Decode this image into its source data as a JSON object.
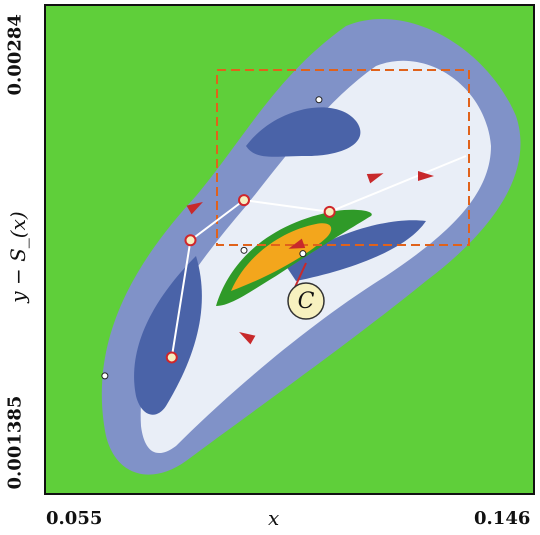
{
  "chart_data": {
    "type": "scatter",
    "title": "",
    "xlabel": "x",
    "ylabel": "y − S_(x)",
    "xlim": [
      0.055,
      0.146
    ],
    "ylim": [
      0.001385,
      0.00284
    ],
    "x_ticks": [
      "0.055",
      "0.146"
    ],
    "y_ticks": [
      "0.001385",
      "0.00284"
    ],
    "annotation_label": "C",
    "grid": false,
    "colors": {
      "escape_region": "#5fcf3a",
      "basin_blue": "#8092c8",
      "island_dark": "#4a63a8",
      "island_core": "#3f5aa3",
      "band_green": "#2f9a28",
      "core_orange": "#f3a61c",
      "periodic_point_fill": "#f6efbf",
      "periodic_point_stroke": "#d0262b",
      "manifold_arrow": "#c8292b",
      "dashed_box": "#e0621b",
      "label_bubble": "#f7f1bf"
    },
    "periodic_points": [
      {
        "x": 0.092,
        "y": 0.00226
      },
      {
        "x": 0.108,
        "y": 0.002225
      },
      {
        "x": 0.082,
        "y": 0.00214
      },
      {
        "x": 0.0785,
        "y": 0.00179
      }
    ],
    "elliptic_centers": [
      {
        "x": 0.106,
        "y": 0.00256
      },
      {
        "x": 0.092,
        "y": 0.00211
      },
      {
        "x": 0.103,
        "y": 0.0021
      },
      {
        "x": 0.066,
        "y": 0.001735
      }
    ]
  }
}
